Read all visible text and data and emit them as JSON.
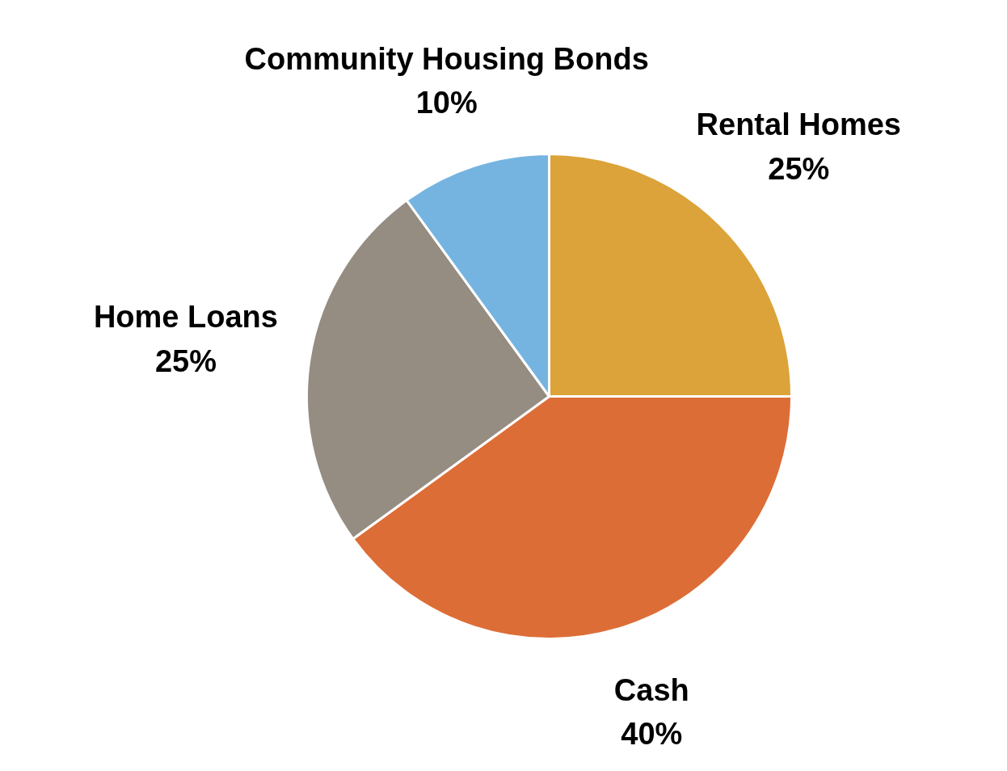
{
  "chart_data": {
    "type": "pie",
    "categories": [
      "Rental Homes",
      "Cash",
      "Home Loans",
      "Community Housing Bonds"
    ],
    "values": [
      25,
      40,
      25,
      10
    ],
    "value_labels": [
      "25%",
      "40%",
      "25%",
      "10%"
    ],
    "colors": [
      "#dba339",
      "#dd6d37",
      "#958c82",
      "#75b4e0"
    ]
  }
}
